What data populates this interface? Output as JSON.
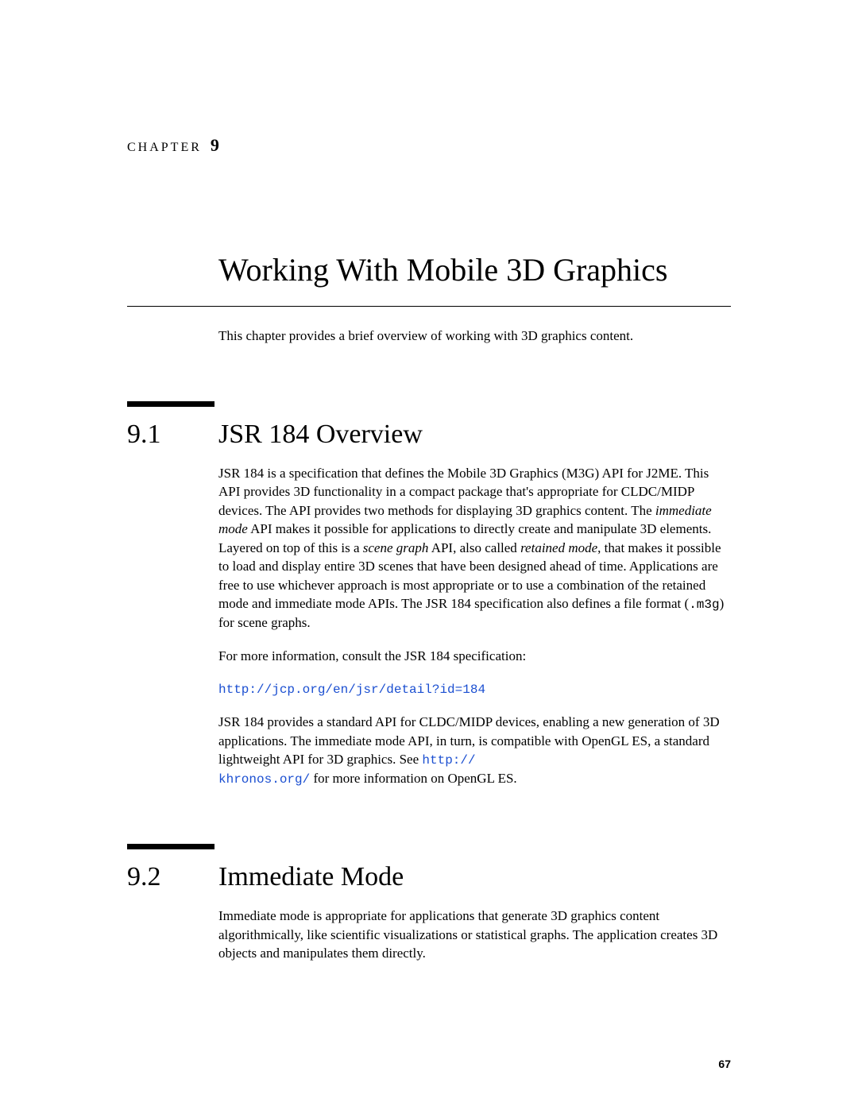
{
  "chapter": {
    "label": "CHAPTER",
    "number": "9",
    "title": "Working With Mobile 3D Graphics",
    "intro": "This chapter provides a brief overview of working with 3D graphics content."
  },
  "sections": [
    {
      "number": "9.1",
      "title": "JSR 184 Overview",
      "para1_a": "JSR 184 is a specification that defines the Mobile 3D Graphics (M3G) API for J2ME. This API provides 3D functionality in a compact package that's appropriate for CLDC/MIDP devices. The API provides two methods for displaying 3D graphics content. The ",
      "para1_em1": "immediate mode",
      "para1_b": " API makes it possible for applications to directly create and manipulate 3D elements. Layered on top of this is a ",
      "para1_em2": "scene graph",
      "para1_c": " API, also called ",
      "para1_em3": "retained mode",
      "para1_d": ", that makes it possible to load and display entire 3D scenes that have been designed ahead of time. Applications are free to use whichever approach is most appropriate or to use a combination of the retained mode and immediate mode APIs. The JSR 184 specification also defines a file format (",
      "para1_code": ".m3g",
      "para1_e": ") for scene graphs.",
      "para2": "For more information, consult the JSR 184 specification:",
      "link1": "http://jcp.org/en/jsr/detail?id=184",
      "para3_a": "JSR 184 provides a standard API for CLDC/MIDP devices, enabling a new generation of 3D applications. The immediate mode API, in turn, is compatible with OpenGL ES, a standard lightweight API for 3D graphics. See ",
      "para3_link_a": "http://",
      "para3_link_b": "khronos.org/",
      "para3_b": " for more information on OpenGL ES."
    },
    {
      "number": "9.2",
      "title": "Immediate Mode",
      "para1": "Immediate mode is appropriate for applications that generate 3D graphics content algorithmically, like scientific visualizations or statistical graphs. The application creates 3D objects and manipulates them directly."
    }
  ],
  "page_number": "67",
  "colors": {
    "text": "#000000",
    "link": "#1b4fd1",
    "background": "#ffffff"
  },
  "typography": {
    "body_font": "Palatino-like serif",
    "mono_font": "Courier",
    "title_size_pt": 30,
    "section_size_pt": 26,
    "body_size_pt": 13
  }
}
